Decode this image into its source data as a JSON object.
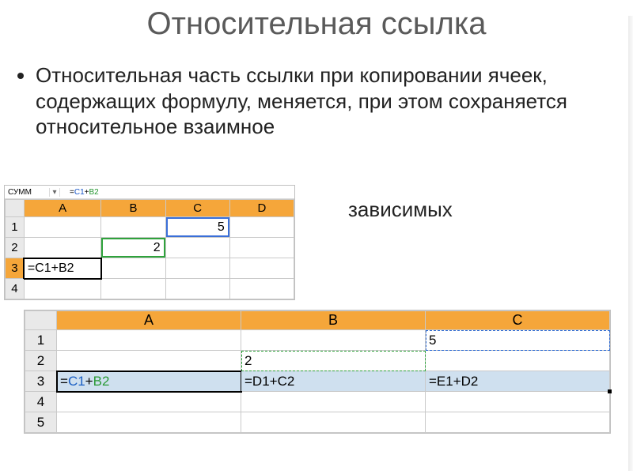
{
  "title": "Относительная ссылка",
  "bullet": "Относительная часть ссылки при копировании ячеек, содержащих формулу, меняется, при этом сохраняется относительное взаимное",
  "trailing_word": "зависимых",
  "sheet1": {
    "formula_bar": {
      "name": "СУММ",
      "prefix": "=",
      "ref1": "С1",
      "op": "+",
      "ref2": "B2"
    },
    "columns": [
      "A",
      "B",
      "C",
      "D"
    ],
    "rows": [
      "1",
      "2",
      "3",
      "4"
    ],
    "cells": {
      "C1": "5",
      "B2": "2",
      "A3": "=C1+B2"
    },
    "header_bg": "#f5a63a",
    "rowhead_bg": "#e9e9e9"
  },
  "sheet2": {
    "columns": [
      "A",
      "B",
      "C"
    ],
    "rows": [
      "1",
      "2",
      "3",
      "4",
      "5"
    ],
    "cells": {
      "C1": "5",
      "B2": "2",
      "A3_eq": "=",
      "A3_r1": "C1",
      "A3_plus": "+",
      "A3_r2": "B2",
      "B3": "=D1+C2",
      "C3": "=E1+D2"
    },
    "header_bg": "#f5a63a",
    "rowhead_bg": "#e9e9e9",
    "selection_bg": "#cfe0ef"
  }
}
